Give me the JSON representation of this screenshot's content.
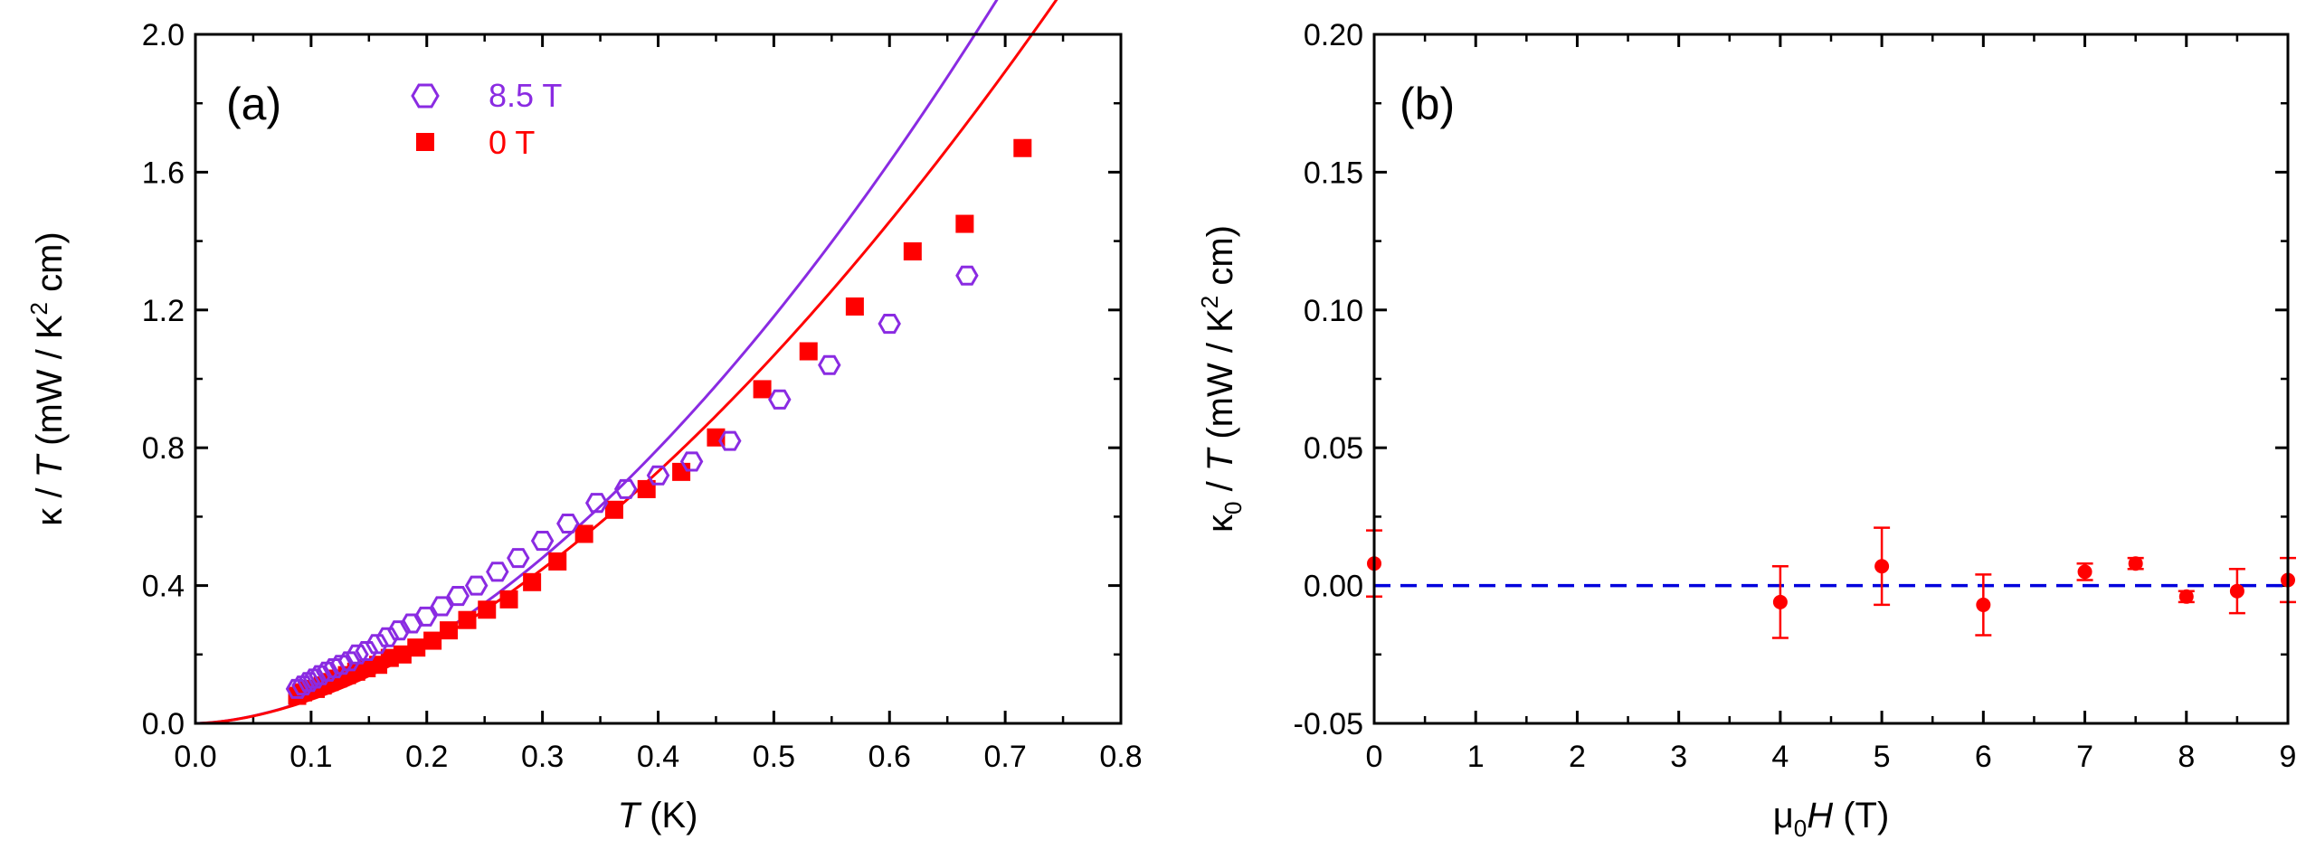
{
  "chart_data": [
    {
      "panel_label": "(a)",
      "type": "scatter",
      "xlabel": "T (K)",
      "ylabel": "κ / T (mW / K² cm)",
      "xlim": [
        0.0,
        0.8
      ],
      "ylim": [
        0.0,
        2.0
      ],
      "xticks": [
        "0.0",
        "0.1",
        "0.2",
        "0.3",
        "0.4",
        "0.5",
        "0.6",
        "0.7",
        "0.8"
      ],
      "yticks": [
        "0.0",
        "0.4",
        "0.8",
        "1.2",
        "1.6",
        "2.0"
      ],
      "legend_position": "top-left",
      "series": [
        {
          "name": "8.5 T",
          "marker": "open-hexagon",
          "color": "#8a2be2",
          "x": [
            0.088,
            0.093,
            0.098,
            0.103,
            0.108,
            0.114,
            0.12,
            0.126,
            0.133,
            0.14,
            0.148,
            0.157,
            0.166,
            0.176,
            0.187,
            0.199,
            0.213,
            0.227,
            0.243,
            0.261,
            0.279,
            0.3,
            0.322,
            0.347,
            0.372,
            0.4,
            0.429,
            0.462,
            0.505,
            0.548,
            0.6,
            0.667
          ],
          "y": [
            0.1,
            0.11,
            0.12,
            0.13,
            0.14,
            0.15,
            0.16,
            0.17,
            0.18,
            0.2,
            0.21,
            0.23,
            0.25,
            0.27,
            0.29,
            0.31,
            0.34,
            0.37,
            0.4,
            0.44,
            0.48,
            0.53,
            0.58,
            0.64,
            0.68,
            0.72,
            0.76,
            0.82,
            0.94,
            1.04,
            1.16,
            1.3
          ]
        },
        {
          "name": "0 T",
          "marker": "filled-square",
          "color": "#ff0000",
          "x": [
            0.088,
            0.093,
            0.098,
            0.104,
            0.11,
            0.116,
            0.123,
            0.131,
            0.139,
            0.148,
            0.158,
            0.168,
            0.179,
            0.191,
            0.205,
            0.219,
            0.235,
            0.252,
            0.271,
            0.291,
            0.313,
            0.336,
            0.362,
            0.39,
            0.42,
            0.45,
            0.49,
            0.53,
            0.57,
            0.62,
            0.665,
            0.715
          ],
          "y": [
            0.08,
            0.09,
            0.1,
            0.1,
            0.11,
            0.12,
            0.13,
            0.14,
            0.15,
            0.16,
            0.17,
            0.19,
            0.2,
            0.22,
            0.24,
            0.27,
            0.3,
            0.33,
            0.36,
            0.41,
            0.47,
            0.55,
            0.62,
            0.68,
            0.73,
            0.83,
            0.97,
            1.08,
            1.21,
            1.37,
            1.45,
            1.67
          ]
        }
      ],
      "fits": [
        {
          "series": "8.5 T",
          "color": "#8a2be2",
          "x_range": [
            0.0,
            0.8
          ],
          "formula": "a*T + b*T^alpha",
          "a": 0.05,
          "b": 3.97,
          "alpha": 1.78
        },
        {
          "series": "0 T",
          "color": "#ff0000",
          "x_range": [
            0.0,
            0.8
          ],
          "formula": "a*T + b*T^alpha",
          "a": 0.0,
          "b": 3.47,
          "alpha": 1.7
        }
      ]
    },
    {
      "panel_label": "(b)",
      "type": "scatter",
      "xlabel": "μ₀H (T)",
      "ylabel": "κ₀ / T (mW / K² cm)",
      "xlim": [
        0,
        9
      ],
      "ylim": [
        -0.05,
        0.2
      ],
      "xticks": [
        "0",
        "1",
        "2",
        "3",
        "4",
        "5",
        "6",
        "7",
        "8",
        "9"
      ],
      "yticks": [
        "-0.05",
        "0.00",
        "0.05",
        "0.10",
        "0.15",
        "0.20"
      ],
      "series": [
        {
          "name": "",
          "marker": "filled-circle",
          "color": "#ff0000",
          "x": [
            0,
            4,
            5,
            6,
            7,
            7.5,
            8,
            8.5,
            9
          ],
          "y": [
            0.008,
            -0.006,
            0.007,
            -0.007,
            0.005,
            0.008,
            -0.004,
            -0.002,
            0.002
          ],
          "yerr": [
            0.012,
            0.013,
            0.014,
            0.011,
            0.003,
            0.002,
            0.002,
            0.008,
            0.008
          ]
        }
      ],
      "reference_line": {
        "y": 0.0,
        "style": "dashed",
        "color": "#0000dd"
      }
    }
  ],
  "figure": {
    "panel_a": {
      "label": "(a)",
      "legend": [
        "8.5 T",
        "0 T"
      ],
      "xlabel_italic": "T",
      "xlabel_rest": " (K)",
      "ylabel_kappa": "κ / ",
      "ylabel_italic": "T",
      "ylabel_units": " (mW / K",
      "ylabel_sup": "2",
      "ylabel_end": " cm)"
    },
    "panel_b": {
      "label": "(b)",
      "xlabel_mu": "μ",
      "xlabel_sub": "0",
      "xlabel_italic": "H",
      "xlabel_rest": " (T)",
      "ylabel_kappa": "κ",
      "ylabel_sub": "0",
      "ylabel_mid": " / ",
      "ylabel_italic": "T",
      "ylabel_units": " (mW / K",
      "ylabel_sup": "2",
      "ylabel_end": " cm)"
    }
  }
}
